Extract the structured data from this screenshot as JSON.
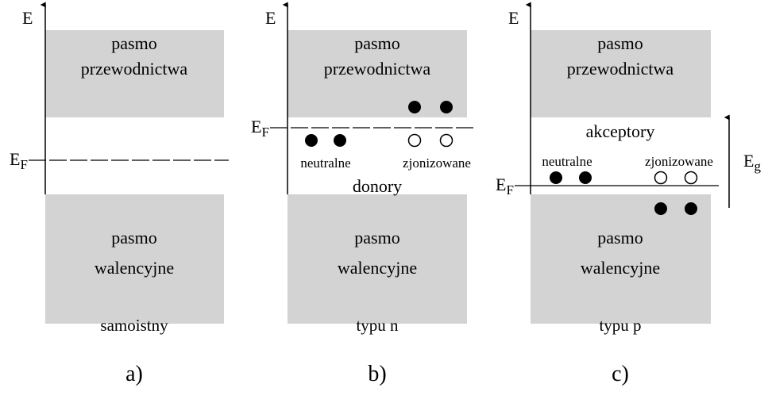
{
  "panels": [
    {
      "axis_label": "E",
      "conduction": [
        "pasmo",
        "przewodnictwa"
      ],
      "valence": [
        "pasmo",
        "walencyjne"
      ],
      "fermi": {
        "main": "E",
        "sub": "F"
      },
      "caption": "samoistny",
      "letter": "a)"
    },
    {
      "axis_label": "E",
      "conduction": [
        "pasmo",
        "przewodnictwa"
      ],
      "valence": [
        "pasmo",
        "walencyjne"
      ],
      "fermi": {
        "main": "E",
        "sub": "F"
      },
      "neutral": "neutralne",
      "ionized": "zjonizowane",
      "dopant": "donory",
      "caption": "typu n",
      "letter": "b)"
    },
    {
      "axis_label": "E",
      "conduction": [
        "pasmo",
        "przewodnictwa"
      ],
      "valence": [
        "pasmo",
        "walencyjne"
      ],
      "fermi": {
        "main": "E",
        "sub": "F"
      },
      "neutral": "neutralne",
      "ionized": "zjonizowane",
      "dopant": "akceptory",
      "gap": {
        "main": "E",
        "sub": "g"
      },
      "caption": "typu p",
      "letter": "c)"
    }
  ]
}
